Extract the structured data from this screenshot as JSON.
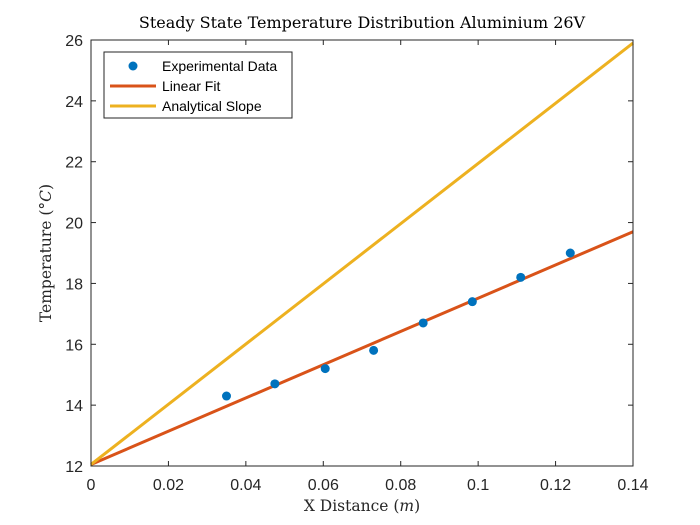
{
  "chart_data": {
    "type": "line",
    "title": "Steady State Temperature Distribution Aluminium 26V",
    "xlabel_prefix": "X Distance (",
    "xlabel_var": "m",
    "xlabel_suffix": ")",
    "ylabel_prefix": "Temperature (",
    "ylabel_unit": "°C",
    "ylabel_suffix": ")",
    "xlim": [
      0,
      0.14
    ],
    "ylim": [
      12,
      26
    ],
    "xticks": [
      "0",
      "0.02",
      "0.04",
      "0.06",
      "0.08",
      "0.1",
      "0.12",
      "0.14"
    ],
    "yticks": [
      "12",
      "14",
      "16",
      "18",
      "20",
      "22",
      "24",
      "26"
    ],
    "grid": false,
    "legend_position": "top-left",
    "series": [
      {
        "name": "Experimental Data",
        "kind": "scatter",
        "color": "#0072BD",
        "x": [
          0.035,
          0.0475,
          0.0605,
          0.073,
          0.0858,
          0.0985,
          0.111,
          0.1238
        ],
        "y": [
          14.3,
          14.7,
          15.2,
          15.8,
          16.7,
          17.4,
          18.2,
          19.0
        ]
      },
      {
        "name": "Linear Fit",
        "kind": "line",
        "color": "#D95319",
        "x": [
          0,
          0.14
        ],
        "y": [
          12.05,
          19.7
        ]
      },
      {
        "name": "Analytical Slope",
        "kind": "line",
        "color": "#EDB120",
        "x": [
          0,
          0.14
        ],
        "y": [
          12.05,
          25.9
        ]
      }
    ]
  }
}
